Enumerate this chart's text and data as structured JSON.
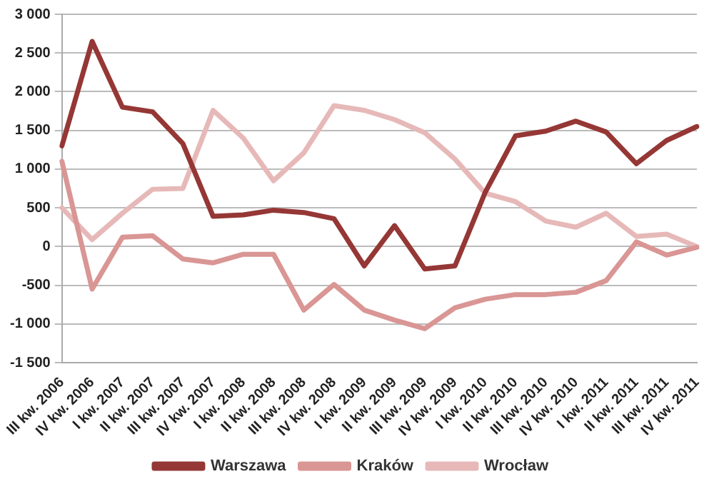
{
  "chart_data": {
    "type": "line",
    "categories": [
      "III kw. 2006",
      "IV kw. 2006",
      "I kw. 2007",
      "II kw. 2007",
      "III kw. 2007",
      "IV kw. 2007",
      "I kw. 2008",
      "II kw. 2008",
      "III kw. 2008",
      "IV kw. 2008",
      "I kw. 2009",
      "II kw. 2009",
      "III kw. 2009",
      "IV kw. 2009",
      "I kw. 2010",
      "II kw. 2010",
      "III kw. 2010",
      "IV kw. 2010",
      "I kw. 2011",
      "II kw. 2011",
      "III kw. 2011",
      "IV kw. 2011"
    ],
    "series": [
      {
        "name": "Warszawa",
        "color": "#953735",
        "values": [
          1300,
          2650,
          1800,
          1740,
          1330,
          390,
          410,
          470,
          440,
          360,
          -250,
          270,
          -290,
          -250,
          700,
          1430,
          1490,
          1620,
          1480,
          1070,
          1370,
          1550
        ]
      },
      {
        "name": "Kraków",
        "color": "#d99694",
        "values": [
          1100,
          -550,
          120,
          140,
          -160,
          -210,
          -100,
          -100,
          -820,
          -490,
          -820,
          -950,
          -1060,
          -790,
          -680,
          -620,
          -620,
          -590,
          -440,
          60,
          -110,
          -10
        ]
      },
      {
        "name": "Wrocław",
        "color": "#e6b9b8",
        "values": [
          500,
          90,
          430,
          740,
          750,
          1760,
          1400,
          850,
          1210,
          1820,
          1760,
          1640,
          1470,
          1130,
          690,
          580,
          330,
          250,
          430,
          130,
          160,
          0
        ]
      }
    ],
    "ylim": [
      -1500,
      3000
    ],
    "yticks": [
      {
        "value": -1500,
        "label": "-1 500"
      },
      {
        "value": -1000,
        "label": "-1 000"
      },
      {
        "value": -500,
        "label": "-500"
      },
      {
        "value": 0,
        "label": "0"
      },
      {
        "value": 500,
        "label": "500"
      },
      {
        "value": 1000,
        "label": "1 000"
      },
      {
        "value": 1500,
        "label": "1 500"
      },
      {
        "value": 2000,
        "label": "2 000"
      },
      {
        "value": 2500,
        "label": "2 500"
      },
      {
        "value": 3000,
        "label": "3 000"
      }
    ],
    "grid": "y",
    "legend": "bottom",
    "marker": "none",
    "line_style": "solid"
  }
}
